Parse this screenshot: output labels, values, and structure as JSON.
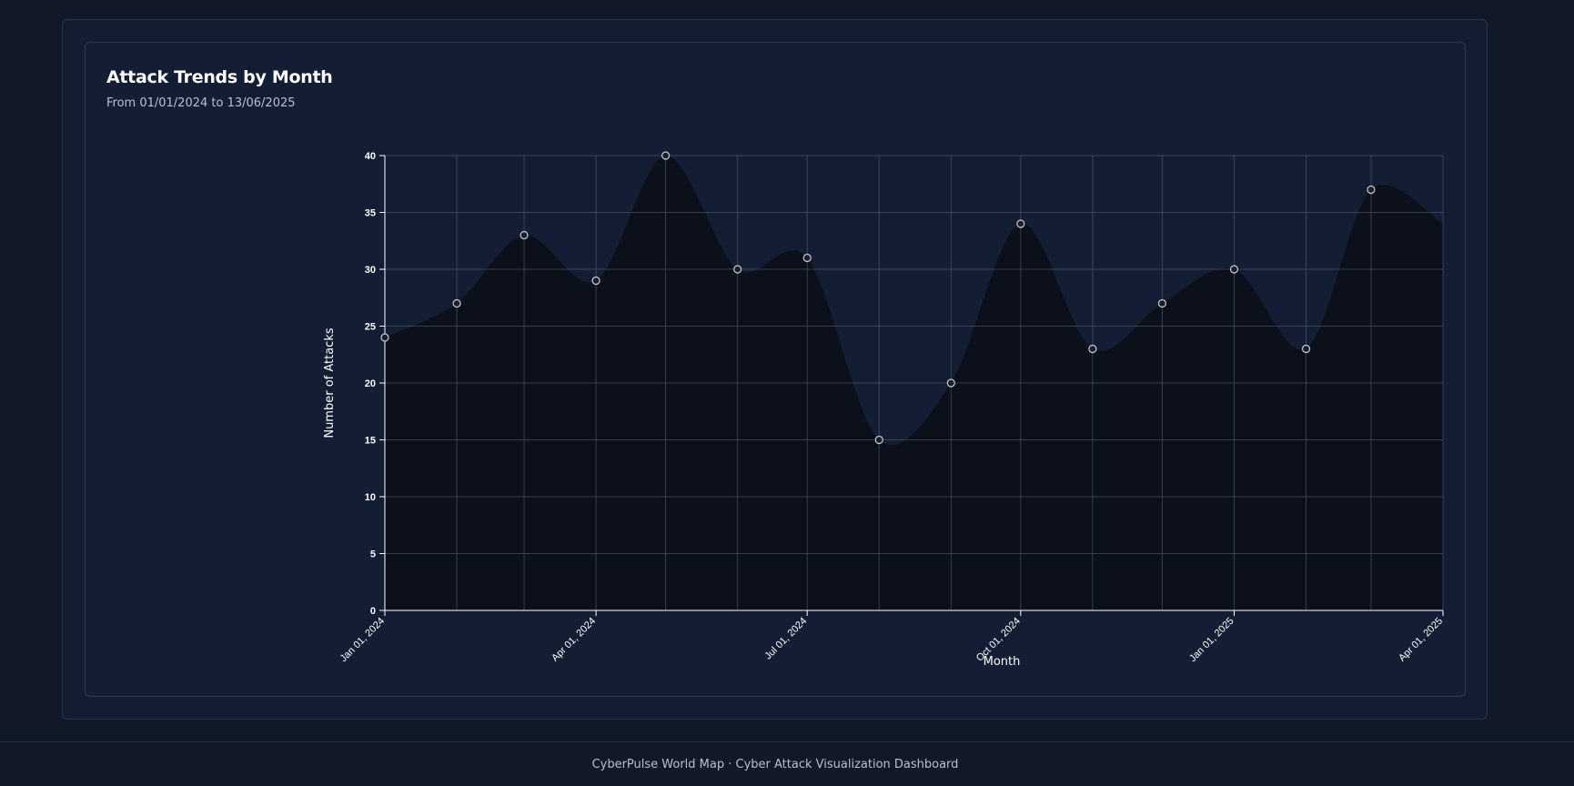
{
  "chart_card": {
    "title": "Attack Trends by Month",
    "subtitle": "From 01/01/2024 to 13/06/2025"
  },
  "footer": {
    "text": "CyberPulse World Map · Cyber Attack Visualization Dashboard"
  },
  "colors": {
    "page_bg": "#111827",
    "card_bg": "#131e34",
    "area_fill": "#0b0f18",
    "grid": "#5b6475",
    "axis_text": "#ffffff",
    "point_fill": "#1a1f2b",
    "point_stroke": "#c8ccd2"
  },
  "chart_data": {
    "type": "area",
    "title": "Attack Trends by Month",
    "subtitle": "From 01/01/2024 to 13/06/2025",
    "xlabel": "Month",
    "ylabel": "Number of Attacks",
    "x": [
      "2024-01-01",
      "2024-02-01",
      "2024-03-01",
      "2024-04-01",
      "2024-05-01",
      "2024-06-01",
      "2024-07-01",
      "2024-08-01",
      "2024-09-01",
      "2024-10-01",
      "2024-11-01",
      "2024-12-01",
      "2025-01-01",
      "2025-02-01",
      "2025-03-01",
      "2025-04-01"
    ],
    "values": [
      24,
      27,
      33,
      29,
      40,
      30,
      31,
      15,
      20,
      34,
      23,
      27,
      30,
      23,
      37,
      34
    ],
    "xlim": [
      "2024-01-01",
      "2025-04-01"
    ],
    "ylim": [
      0,
      40
    ],
    "y_ticks": [
      0,
      5,
      10,
      15,
      20,
      25,
      30,
      35,
      40
    ],
    "x_ticks": [
      "2024-01-01",
      "2024-04-01",
      "2024-07-01",
      "2024-10-01",
      "2025-01-01",
      "2025-04-01"
    ],
    "x_tick_labels": [
      "Jan 01, 2024",
      "Apr 01, 2024",
      "Jul 01, 2024",
      "Oct 01, 2024",
      "Jan 01, 2025",
      "Apr 01, 2025"
    ],
    "grid": true,
    "curve": "smooth",
    "markers": true,
    "legend": "none"
  }
}
